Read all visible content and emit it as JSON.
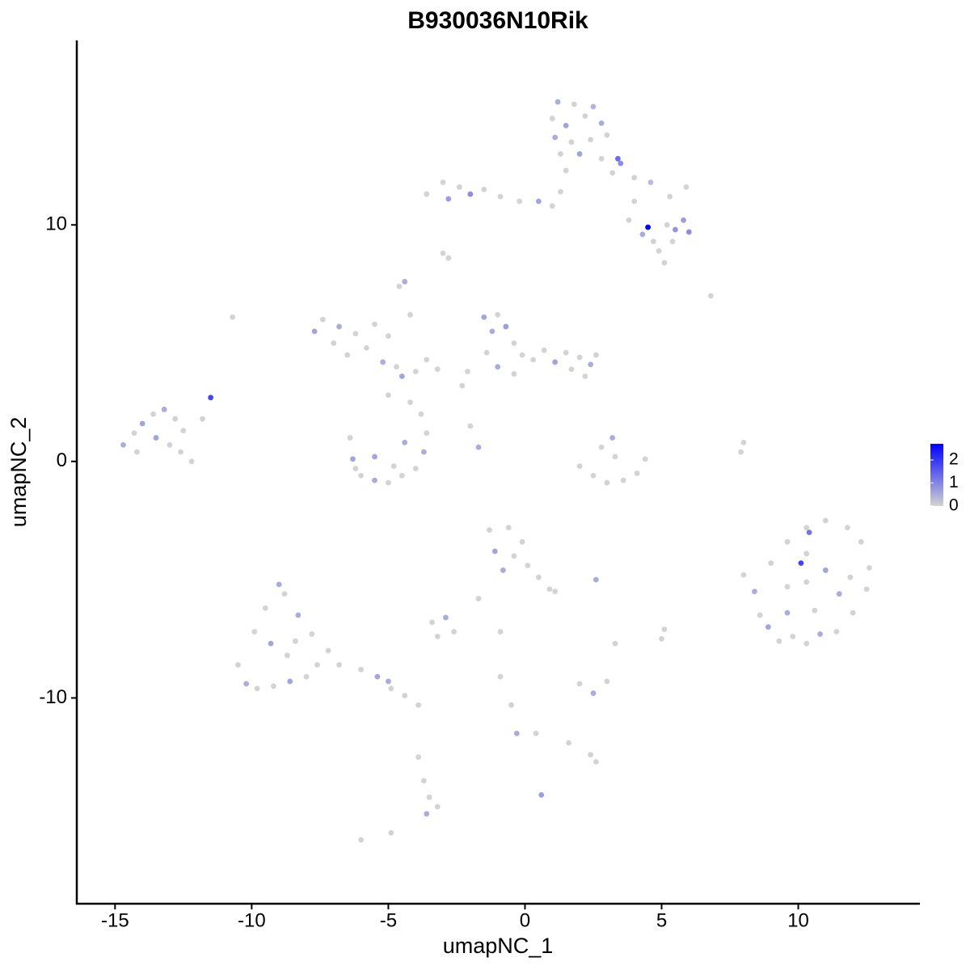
{
  "chart_data": {
    "type": "scatter",
    "title": "B930036N10Rik",
    "x_label": "umapNC_1",
    "y_label": "umapNC_2",
    "xlim": [
      -16.4,
      14.45
    ],
    "ylim": [
      -18.7,
      17.8
    ],
    "xticks": [
      -15,
      -10,
      -5,
      0,
      5,
      10
    ],
    "yticks": [
      -10,
      0,
      10
    ],
    "color_low": "#d3d3d3",
    "color_high": "#0000ff",
    "clim": [
      0,
      2.7
    ],
    "cticks": [
      0,
      1,
      2
    ],
    "x": [
      1.2,
      1.8,
      2.5,
      1.0,
      1.5,
      2.2,
      2.8,
      3.0,
      1.1,
      1.7,
      2.4,
      2.0,
      1.3,
      2.8,
      3.5,
      3.2,
      4.0,
      4.6,
      5.3,
      5.9,
      4.0,
      3.8,
      4.3,
      4.7,
      4.9,
      5.5,
      6.0,
      5.8,
      5.2,
      5.4,
      5.1,
      6.8,
      -3.6,
      -3.0,
      -2.8,
      -2.4,
      -2.0,
      -1.5,
      -0.9,
      -0.2,
      0.5,
      1.0,
      1.3,
      1.5,
      -3.0,
      -2.8,
      -7.7,
      -7.4,
      -7.0,
      -6.8,
      -6.2,
      -6.5,
      -5.8,
      -5.5,
      -5.0,
      -5.2,
      -4.7,
      -4.5,
      -4.0,
      -3.6,
      -3.2,
      -4.6,
      -4.4,
      -4.2,
      -1.5,
      -1.0,
      -1.2,
      -0.7,
      -0.4,
      -0.1,
      -1.4,
      -1.0,
      -0.4,
      0.3,
      0.7,
      1.1,
      1.5,
      2.0,
      1.7,
      2.4,
      2.6,
      2.2,
      -2.1,
      -2.3,
      -14.7,
      -14.3,
      -14.0,
      -13.6,
      -13.2,
      -12.8,
      -12.5,
      -13.5,
      -13.0,
      -14.2,
      -12.6,
      -12.2,
      -11.8,
      -11.5,
      -6.4,
      -6.3,
      -6.0,
      -5.5,
      -5.0,
      -4.5,
      -4.0,
      -3.7,
      -3.6,
      -3.8,
      -4.2,
      -5.0,
      -5.5,
      -4.8,
      -6.2,
      -4.4,
      2.0,
      2.5,
      3.0,
      3.6,
      4.1,
      4.4,
      3.2,
      2.8,
      3.3,
      -2.0,
      -1.7,
      7.9,
      8.0,
      8.4,
      8.6,
      8.9,
      9.3,
      9.8,
      10.3,
      10.8,
      11.4,
      12.0,
      12.5,
      12.6,
      12.3,
      11.8,
      11.0,
      10.3,
      9.6,
      9.0,
      9.6,
      10.3,
      11.0,
      11.5,
      10.6,
      9.6,
      10.3,
      11.9,
      -10.5,
      -10.2,
      -9.8,
      -9.2,
      -8.6,
      -8.0,
      -7.6,
      -7.2,
      -7.8,
      -8.3,
      -8.8,
      -9.0,
      -9.5,
      -9.9,
      -9.3,
      -8.7,
      -8.4,
      -6.8,
      -6.0,
      -5.4,
      -4.9,
      -4.4,
      -3.9,
      -5.0,
      -1.3,
      -0.6,
      -1.1,
      -0.4,
      0.1,
      -0.8,
      0.5,
      0.9,
      1.1,
      -0.1,
      -3.4,
      -2.9,
      -2.6,
      -3.2,
      -1.7,
      -0.9,
      2.6,
      5.1,
      5.0,
      3.3,
      2.0,
      2.5,
      3.0,
      -0.9,
      -0.5,
      -0.3,
      0.4,
      2.4,
      2.6,
      1.6,
      -3.7,
      -3.5,
      -3.6,
      -3.2,
      -3.9,
      0.6,
      -6.0,
      -4.9,
      -10.7,
      8.0,
      4.5,
      10.1,
      10.4,
      3.4
    ],
    "y": [
      15.2,
      15.1,
      15.0,
      14.5,
      14.2,
      14.6,
      14.3,
      13.8,
      13.7,
      13.5,
      13.6,
      13.0,
      13.0,
      12.8,
      12.6,
      12.2,
      12.0,
      11.8,
      11.2,
      11.6,
      11.0,
      10.2,
      9.6,
      9.3,
      8.9,
      9.8,
      9.7,
      10.2,
      10.0,
      9.3,
      8.4,
      7.0,
      11.3,
      11.8,
      11.1,
      11.6,
      11.3,
      11.5,
      11.2,
      11.0,
      11.0,
      10.8,
      11.4,
      12.3,
      8.8,
      8.6,
      5.5,
      6.0,
      5.0,
      5.7,
      5.4,
      4.5,
      4.8,
      5.8,
      5.3,
      4.2,
      4.0,
      3.6,
      3.8,
      4.3,
      3.9,
      7.4,
      7.6,
      6.2,
      6.1,
      6.2,
      5.5,
      5.7,
      5.0,
      4.5,
      4.6,
      4.0,
      3.7,
      4.3,
      4.7,
      4.2,
      4.6,
      4.4,
      3.9,
      4.1,
      4.5,
      3.6,
      3.8,
      3.2,
      0.7,
      1.2,
      1.6,
      2.0,
      2.2,
      1.8,
      1.3,
      1.0,
      0.7,
      0.4,
      0.4,
      0.0,
      1.8,
      2.7,
      1.0,
      0.1,
      -0.6,
      -0.8,
      -0.9,
      -0.6,
      -0.3,
      0.4,
      1.2,
      2.0,
      2.5,
      2.8,
      0.2,
      -0.2,
      -0.3,
      0.8,
      -0.2,
      -0.6,
      -0.9,
      -0.8,
      -0.5,
      0.1,
      1.0,
      0.6,
      0.2,
      1.5,
      0.6,
      0.4,
      -4.8,
      -5.5,
      -6.5,
      -7.0,
      -7.6,
      -7.4,
      -7.7,
      -7.3,
      -7.2,
      -6.4,
      -5.4,
      -4.5,
      -3.4,
      -2.8,
      -2.5,
      -2.8,
      -3.4,
      -4.3,
      -5.3,
      -5.1,
      -4.6,
      -5.6,
      -6.3,
      -6.4,
      -3.9,
      -4.9,
      -8.6,
      -9.4,
      -9.6,
      -9.5,
      -9.3,
      -9.1,
      -8.6,
      -8.0,
      -7.3,
      -6.5,
      -5.6,
      -5.2,
      -6.2,
      -7.2,
      -7.7,
      -8.2,
      -7.6,
      -8.6,
      -8.8,
      -9.1,
      -9.6,
      -9.9,
      -10.3,
      -9.3,
      -2.9,
      -2.8,
      -3.8,
      -4.0,
      -4.4,
      -4.6,
      -4.9,
      -5.4,
      -5.5,
      -3.4,
      -6.8,
      -6.6,
      -7.2,
      -7.4,
      -5.8,
      -7.2,
      -5.0,
      -7.1,
      -7.5,
      -7.7,
      -9.4,
      -9.8,
      -9.3,
      -9.1,
      -10.3,
      -11.5,
      -11.5,
      -12.4,
      -12.7,
      -11.9,
      -13.5,
      -14.2,
      -14.9,
      -14.6,
      -12.5,
      -14.1,
      -16.0,
      -15.7,
      6.1,
      0.8,
      9.9,
      -4.3,
      -3.0,
      12.8
    ],
    "values": [
      0.5,
      0,
      0.4,
      0,
      0.6,
      0,
      0.5,
      0,
      0.5,
      0,
      0,
      0.6,
      0,
      0,
      0.9,
      0,
      0,
      0.3,
      0,
      0,
      0,
      0,
      0.5,
      0,
      0,
      0.8,
      0.9,
      0.7,
      0,
      0,
      0,
      0,
      0,
      0,
      0.7,
      0,
      0.9,
      0,
      0,
      0,
      0.6,
      0,
      0,
      0,
      0,
      0,
      0.6,
      0,
      0,
      0.5,
      0,
      0,
      0,
      0,
      0,
      0.5,
      0,
      0.6,
      0,
      0,
      0,
      0,
      0.5,
      0,
      0.6,
      0,
      0.5,
      0.7,
      0,
      0,
      0,
      0.5,
      0,
      0,
      0,
      0.6,
      0,
      0,
      0,
      0.5,
      0,
      0,
      0,
      0,
      0.5,
      0,
      0.6,
      0,
      0.5,
      0,
      0,
      0.6,
      0,
      0,
      0,
      0,
      0,
      1.8,
      0,
      0.6,
      0,
      0.5,
      0,
      0,
      0,
      0.5,
      0,
      0,
      0,
      0,
      0.6,
      0,
      0,
      0.5,
      0,
      0,
      0,
      0,
      0,
      0,
      0.5,
      0,
      0,
      0,
      0.5,
      0,
      0,
      0.5,
      0,
      0.6,
      0,
      0,
      0,
      0.5,
      0,
      0,
      0,
      0,
      0,
      0,
      0,
      0,
      0,
      0,
      0,
      0,
      0.6,
      0.5,
      0,
      0.5,
      0,
      0,
      0,
      0.5,
      0,
      0,
      0.6,
      0,
      0,
      0,
      0,
      0.5,
      0,
      0.5,
      0,
      0,
      0.6,
      0,
      0,
      0,
      0,
      0.6,
      0,
      0,
      0,
      0.5,
      0,
      0,
      0.6,
      0,
      0,
      0.5,
      0,
      0,
      0,
      0,
      0,
      0.5,
      0,
      0,
      0,
      0,
      0.5,
      0,
      0,
      0,
      0,
      0.5,
      0,
      0,
      0,
      0.5,
      0,
      0,
      0,
      0,
      0,
      0,
      0.5,
      0,
      0,
      0.7,
      0,
      0,
      0,
      0,
      2.7,
      1.8,
      1.2,
      1.3
    ]
  }
}
